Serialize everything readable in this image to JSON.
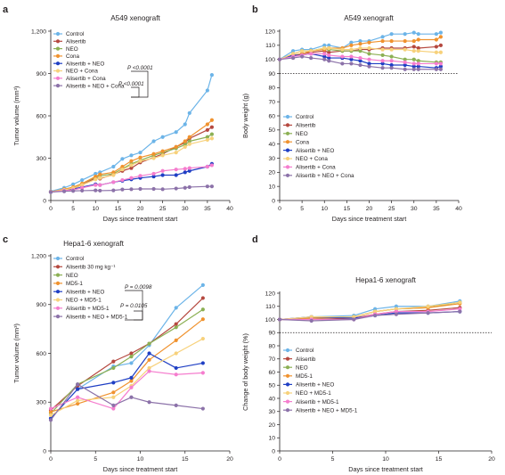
{
  "panels": [
    {
      "letter": "a",
      "title": "A549 xenograft"
    },
    {
      "letter": "b",
      "title": "A549 xenograft"
    },
    {
      "letter": "c",
      "title": "Hepa1-6 xenograft"
    },
    {
      "letter": "d",
      "title": "Hepa1-6 xenograft"
    }
  ],
  "chart_data": [
    {
      "id": "a",
      "type": "line",
      "title": "A549 xenograft",
      "xlabel": "Days since treatment start",
      "ylabel": "Tumor volume (mm³)",
      "xlim": [
        0,
        40
      ],
      "ylim": [
        0,
        1200
      ],
      "xticks": [
        0,
        5,
        10,
        15,
        20,
        25,
        30,
        35,
        40
      ],
      "yticks": [
        0,
        300,
        600,
        900,
        1200
      ],
      "legend": "top-left",
      "grid": false,
      "annotations": [
        {
          "text": "P <0.0001",
          "between": [
            "Control",
            "Alisertib + NEO + Cona"
          ]
        },
        {
          "text": "P <0.0001",
          "between": [
            "Alisertib + NEO",
            "Alisertib + NEO + Cona"
          ]
        }
      ],
      "x": [
        0,
        3,
        5,
        7,
        10,
        11,
        14,
        16,
        18,
        20,
        23,
        25,
        28,
        30,
        31,
        35,
        36
      ],
      "series": [
        {
          "name": "Control",
          "color": "#6cb4e8",
          "values": [
            65,
            90,
            115,
            145,
            190,
            200,
            240,
            295,
            320,
            340,
            420,
            450,
            485,
            540,
            620,
            780,
            890
          ]
        },
        {
          "name": "Alisertib",
          "color": "#b5483f",
          "values": [
            62,
            75,
            85,
            110,
            160,
            155,
            185,
            210,
            230,
            270,
            305,
            330,
            380,
            410,
            440,
            500,
            520
          ]
        },
        {
          "name": "NEO",
          "color": "#8cb054",
          "values": [
            60,
            78,
            90,
            120,
            165,
            175,
            190,
            225,
            260,
            285,
            320,
            340,
            370,
            395,
            420,
            450,
            470
          ]
        },
        {
          "name": "Cona",
          "color": "#f0922e",
          "values": [
            62,
            80,
            95,
            120,
            170,
            185,
            200,
            240,
            280,
            305,
            330,
            350,
            380,
            420,
            450,
            540,
            570
          ]
        },
        {
          "name": "Alisertib + NEO",
          "color": "#1f3fc4",
          "values": [
            60,
            72,
            80,
            95,
            115,
            110,
            130,
            140,
            150,
            160,
            170,
            180,
            180,
            200,
            210,
            240,
            260
          ]
        },
        {
          "name": "NEO + Cona",
          "color": "#f7d17b",
          "values": [
            62,
            75,
            88,
            110,
            150,
            160,
            180,
            220,
            250,
            280,
            300,
            320,
            340,
            380,
            400,
            430,
            440
          ]
        },
        {
          "name": "Alisertib + Cona",
          "color": "#f57dce",
          "values": [
            60,
            70,
            75,
            90,
            110,
            110,
            130,
            145,
            160,
            175,
            190,
            210,
            220,
            225,
            230,
            240,
            250
          ]
        },
        {
          "name": "Alisertib + NEO + Cona",
          "color": "#8c72a9",
          "values": [
            60,
            65,
            68,
            70,
            72,
            70,
            72,
            78,
            80,
            82,
            82,
            80,
            85,
            90,
            95,
            100,
            100
          ]
        }
      ]
    },
    {
      "id": "b",
      "type": "line",
      "title": "A549 xenograft",
      "xlabel": "Days since treatment start",
      "ylabel": "Body weight (g)",
      "xlim": [
        0,
        40
      ],
      "ylim": [
        0,
        120
      ],
      "xticks": [
        0,
        5,
        10,
        15,
        20,
        25,
        30,
        35,
        40
      ],
      "yticks": [
        0,
        10,
        20,
        30,
        40,
        50,
        60,
        70,
        80,
        90,
        100,
        110,
        120
      ],
      "reference_line": 90,
      "legend": "center-left",
      "grid": false,
      "x": [
        0,
        3,
        5,
        7,
        10,
        11,
        14,
        16,
        18,
        20,
        23,
        25,
        28,
        30,
        31,
        35,
        36
      ],
      "series": [
        {
          "name": "Control",
          "color": "#6cb4e8",
          "values": [
            100,
            106,
            107,
            107,
            110,
            110,
            108,
            112,
            113,
            113,
            116,
            118,
            118,
            119,
            118,
            118,
            119
          ]
        },
        {
          "name": "Alisertib",
          "color": "#b5483f",
          "values": [
            100,
            103,
            104,
            105,
            106,
            105,
            106,
            106,
            107,
            107,
            108,
            108,
            108,
            109,
            108,
            109,
            110
          ]
        },
        {
          "name": "NEO",
          "color": "#8cb054",
          "values": [
            100,
            104,
            106,
            106,
            108,
            107,
            106,
            106,
            106,
            104,
            103,
            102,
            100,
            100,
            99,
            98,
            98
          ]
        },
        {
          "name": "Cona",
          "color": "#f0922e",
          "values": [
            100,
            103,
            104,
            106,
            107,
            108,
            108,
            110,
            111,
            112,
            113,
            113,
            113,
            113,
            114,
            114,
            116
          ]
        },
        {
          "name": "Alisertib + NEO",
          "color": "#1f3fc4",
          "values": [
            100,
            103,
            103,
            104,
            102,
            101,
            101,
            100,
            99,
            97,
            97,
            96,
            96,
            95,
            95,
            94,
            95
          ]
        },
        {
          "name": "NEO + Cona",
          "color": "#f7d17b",
          "values": [
            100,
            104,
            106,
            106,
            108,
            108,
            107,
            107,
            108,
            108,
            107,
            107,
            107,
            106,
            106,
            105,
            105
          ]
        },
        {
          "name": "Alisertib + Cona",
          "color": "#f57dce",
          "values": [
            100,
            102,
            103,
            104,
            104,
            103,
            102,
            102,
            101,
            100,
            99,
            99,
            98,
            97,
            97,
            97,
            97
          ]
        },
        {
          "name": "Alisertib + NEO + Cona",
          "color": "#8c72a9",
          "values": [
            100,
            101,
            102,
            101,
            100,
            99,
            97,
            97,
            96,
            95,
            94,
            94,
            93,
            93,
            93,
            93,
            93
          ]
        }
      ]
    },
    {
      "id": "c",
      "type": "line",
      "title": "Hepa1-6 xenograft",
      "xlabel": "Days since treatment start",
      "ylabel": "Tumor volume (mm³)",
      "xlim": [
        0,
        20
      ],
      "ylim": [
        0,
        1200
      ],
      "xticks": [
        0,
        5,
        10,
        15,
        20
      ],
      "yticks": [
        0,
        300,
        600,
        900,
        1200
      ],
      "legend": "top-left",
      "grid": false,
      "annotations": [
        {
          "text": "P = 0.0098",
          "between": [
            "Alisertib 30 mg kg⁻¹",
            "Alisertib + NEO + MD5-1"
          ]
        },
        {
          "text": "P = 0.0105",
          "between": [
            "NEO",
            "Alisertib + NEO + MD5-1"
          ]
        }
      ],
      "x": [
        0,
        3,
        7,
        9,
        11,
        14,
        17
      ],
      "series": [
        {
          "name": "Control",
          "color": "#6cb4e8",
          "values": [
            200,
            380,
            520,
            540,
            650,
            880,
            1020
          ]
        },
        {
          "name": "Alisertib 30 mg kg⁻¹",
          "color": "#b5483f",
          "values": [
            250,
            400,
            550,
            600,
            660,
            780,
            940
          ]
        },
        {
          "name": "NEO",
          "color": "#8cb054",
          "values": [
            230,
            410,
            510,
            580,
            660,
            760,
            870
          ]
        },
        {
          "name": "MD5-1",
          "color": "#f0922e",
          "values": [
            240,
            290,
            360,
            430,
            560,
            680,
            810
          ]
        },
        {
          "name": "Alisertib + NEO",
          "color": "#1f3fc4",
          "values": [
            200,
            380,
            420,
            450,
            600,
            510,
            540
          ]
        },
        {
          "name": "NEO + MD5-1",
          "color": "#f7d17b",
          "values": [
            220,
            310,
            330,
            400,
            510,
            600,
            690
          ]
        },
        {
          "name": "Alisertib + MD5-1",
          "color": "#f57dce",
          "values": [
            260,
            330,
            260,
            390,
            490,
            470,
            480
          ]
        },
        {
          "name": "Alisertib + NEO + MD5-1",
          "color": "#8c72a9",
          "values": [
            190,
            410,
            280,
            330,
            300,
            280,
            260
          ]
        }
      ]
    },
    {
      "id": "d",
      "type": "line",
      "title": "Hepa1-6 xenograft",
      "xlabel": "Days since treatment start",
      "ylabel": "Change of body weight (%)",
      "xlim": [
        0,
        20
      ],
      "ylim": [
        0,
        120
      ],
      "xticks": [
        0,
        5,
        10,
        15,
        20
      ],
      "yticks": [
        0,
        10,
        20,
        30,
        40,
        50,
        60,
        70,
        80,
        90,
        100,
        110,
        120
      ],
      "reference_line": 90,
      "legend": "center-left",
      "grid": false,
      "x": [
        0,
        3,
        7,
        9,
        11,
        14,
        17
      ],
      "series": [
        {
          "name": "Control",
          "color": "#6cb4e8",
          "values": [
            100,
            102,
            103,
            108,
            110,
            110,
            114
          ]
        },
        {
          "name": "Alisertib",
          "color": "#b5483f",
          "values": [
            100,
            100,
            101,
            104,
            106,
            107,
            109
          ]
        },
        {
          "name": "NEO",
          "color": "#8cb054",
          "values": [
            100,
            101,
            102,
            106,
            108,
            109,
            113
          ]
        },
        {
          "name": "MD5-1",
          "color": "#f0922e",
          "values": [
            100,
            101,
            102,
            106,
            108,
            109,
            112
          ]
        },
        {
          "name": "Alisertib + NEO",
          "color": "#1f3fc4",
          "values": [
            100,
            102,
            101,
            103,
            105,
            105,
            106
          ]
        },
        {
          "name": "NEO + MD5-1",
          "color": "#f7d17b",
          "values": [
            100,
            102,
            102,
            106,
            108,
            110,
            113
          ]
        },
        {
          "name": "Alisertib + MD5-1",
          "color": "#f57dce",
          "values": [
            100,
            100,
            100,
            104,
            106,
            106,
            108
          ]
        },
        {
          "name": "Alisertib + NEO + MD5-1",
          "color": "#8c72a9",
          "values": [
            100,
            99,
            100,
            103,
            104,
            105,
            106
          ]
        }
      ]
    }
  ]
}
